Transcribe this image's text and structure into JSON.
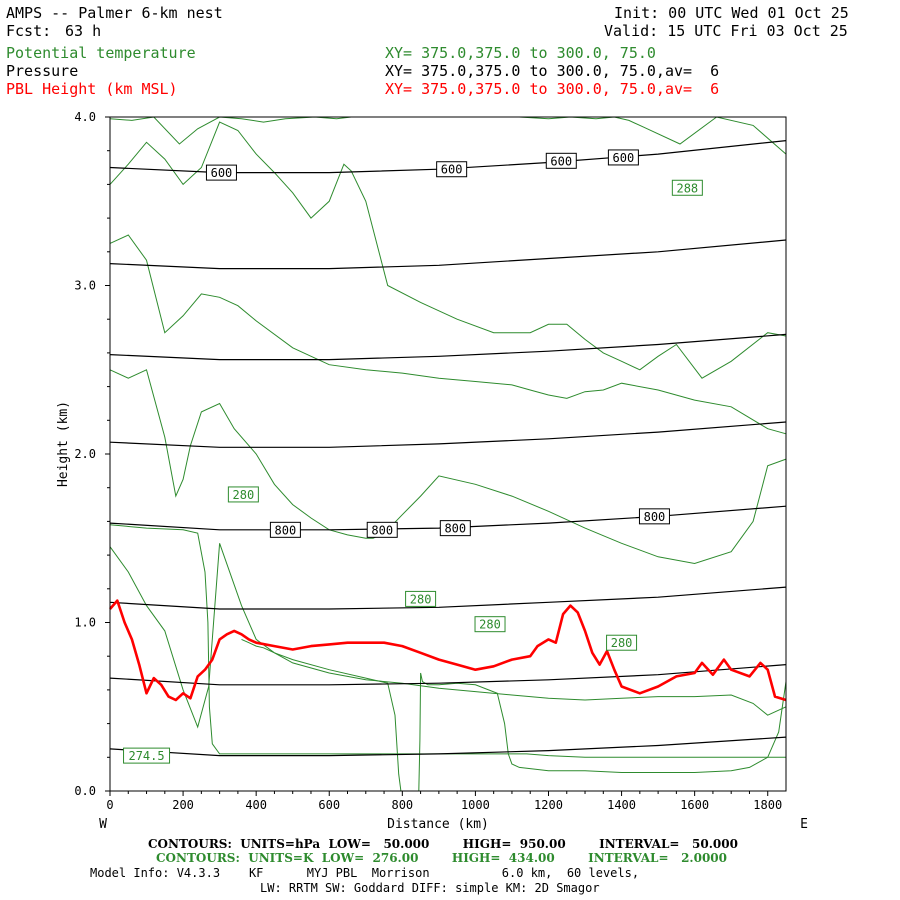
{
  "header": {
    "model": "AMPS -- Palmer 6-km nest",
    "fcst_label": "Fcst:",
    "fcst_value": "63 h",
    "init": "Init: 00 UTC Wed 01 Oct 25",
    "valid": "Valid: 15 UTC Fri 03 Oct 25",
    "field1": "Potential temperature",
    "field1_xy": "XY= 375.0,375.0 to 300.0, 75.0",
    "field2": "Pressure",
    "field2_xy": "XY= 375.0,375.0 to 300.0, 75.0,av=  6",
    "field3": "PBL Height (km MSL)",
    "field3_xy": "XY= 375.0,375.0 to 300.0, 75.0,av=  6"
  },
  "footer": {
    "pressure_contours": "CONTOURS:  UNITS=hPa  LOW=   50.000        HIGH=  950.00        INTERVAL=   50.000",
    "theta_contours": "CONTOURS:  UNITS=K  LOW=  276.00        HIGH=  434.00        INTERVAL=   2.0000",
    "model_info": "Model Info: V4.3.3    KF      MYJ PBL  Morrison          6.0 km,  60 levels,",
    "model_info2": "LW: RRTM SW: Goddard DIFF: simple KM: 2D Smagor"
  },
  "colors": {
    "theta": "#2e8b2e",
    "pressure": "#000000",
    "pbl": "#ff0000"
  },
  "chart_data": {
    "type": "line",
    "xlabel": "Distance (km)",
    "ylabel": "Height (km)",
    "x_left_label": "W",
    "x_right_label": "E",
    "xlim": [
      0,
      1850
    ],
    "ylim": [
      0,
      4
    ],
    "xticks": [
      0,
      200,
      400,
      600,
      800,
      1000,
      1200,
      1400,
      1600,
      1800
    ],
    "yticks": [
      0.0,
      1.0,
      2.0,
      3.0,
      4.0
    ],
    "ytick_labels": [
      "0.0",
      "1.0",
      "2.0",
      "3.0",
      "4.0"
    ],
    "pressure_lines": [
      {
        "level": 950,
        "x": [
          0,
          300,
          600,
          900,
          1200,
          1500,
          1850
        ],
        "y": [
          0.25,
          0.21,
          0.21,
          0.22,
          0.24,
          0.27,
          0.32
        ]
      },
      {
        "level": 900,
        "x": [
          0,
          300,
          600,
          900,
          1200,
          1500,
          1850
        ],
        "y": [
          0.67,
          0.63,
          0.63,
          0.64,
          0.66,
          0.69,
          0.75
        ]
      },
      {
        "level": 850,
        "x": [
          0,
          300,
          600,
          900,
          1200,
          1500,
          1850
        ],
        "y": [
          1.12,
          1.08,
          1.08,
          1.09,
          1.12,
          1.15,
          1.21
        ]
      },
      {
        "level": 800,
        "x": [
          0,
          300,
          600,
          900,
          1200,
          1500,
          1850
        ],
        "y": [
          1.59,
          1.55,
          1.55,
          1.56,
          1.59,
          1.63,
          1.69
        ]
      },
      {
        "level": 750,
        "x": [
          0,
          300,
          600,
          900,
          1200,
          1500,
          1850
        ],
        "y": [
          2.07,
          2.04,
          2.04,
          2.06,
          2.09,
          2.13,
          2.19
        ]
      },
      {
        "level": 700,
        "x": [
          0,
          300,
          600,
          900,
          1200,
          1500,
          1850
        ],
        "y": [
          2.59,
          2.56,
          2.56,
          2.58,
          2.61,
          2.65,
          2.71
        ]
      },
      {
        "level": 650,
        "x": [
          0,
          300,
          600,
          900,
          1200,
          1500,
          1850
        ],
        "y": [
          3.13,
          3.1,
          3.1,
          3.12,
          3.16,
          3.2,
          3.27
        ]
      },
      {
        "level": 600,
        "x": [
          0,
          300,
          600,
          900,
          1200,
          1500,
          1850
        ],
        "y": [
          3.7,
          3.67,
          3.67,
          3.69,
          3.73,
          3.78,
          3.86
        ]
      }
    ],
    "pressure_labels": [
      {
        "text": "600",
        "x": 305,
        "y": 3.67
      },
      {
        "text": "600",
        "x": 935,
        "y": 3.69
      },
      {
        "text": "600",
        "x": 1235,
        "y": 3.74
      },
      {
        "text": "600",
        "x": 1405,
        "y": 3.76
      },
      {
        "text": "800",
        "x": 480,
        "y": 1.55
      },
      {
        "text": "800",
        "x": 745,
        "y": 1.55
      },
      {
        "text": "800",
        "x": 945,
        "y": 1.56
      },
      {
        "text": "800",
        "x": 1490,
        "y": 1.63
      }
    ],
    "theta_lines": [
      {
        "x": [
          0,
          60,
          120,
          190,
          240,
          300,
          360,
          420,
          480,
          560,
          620,
          660,
          720,
          790,
          880,
          1000,
          1120,
          1200,
          1260,
          1330,
          1380,
          1420,
          1460,
          1560,
          1660,
          1760,
          1850
        ],
        "y": [
          3.99,
          3.98,
          4.0,
          3.84,
          3.93,
          4.0,
          3.99,
          3.97,
          3.99,
          4.0,
          3.99,
          4.0,
          4.0,
          4.0,
          4.0,
          4.0,
          4.0,
          3.99,
          4.0,
          3.99,
          4.0,
          3.98,
          3.94,
          3.84,
          4.0,
          3.95,
          3.78
        ]
      },
      {
        "x": [
          0,
          50,
          100,
          150,
          200,
          250,
          300,
          350,
          400,
          450,
          500,
          550,
          600,
          640,
          660,
          700,
          760,
          850,
          950,
          1050,
          1150,
          1200,
          1250,
          1300,
          1350,
          1400,
          1450,
          1500,
          1550,
          1620,
          1700,
          1800,
          1850
        ],
        "y": [
          3.6,
          3.72,
          3.85,
          3.75,
          3.6,
          3.7,
          3.97,
          3.92,
          3.78,
          3.67,
          3.55,
          3.4,
          3.5,
          3.72,
          3.68,
          3.5,
          3.0,
          2.9,
          2.8,
          2.72,
          2.72,
          2.77,
          2.77,
          2.68,
          2.6,
          2.55,
          2.5,
          2.58,
          2.65,
          2.45,
          2.55,
          2.72,
          2.7
        ]
      },
      {
        "x": [
          0,
          50,
          100,
          150,
          200,
          250,
          300,
          350,
          400,
          500,
          600,
          700,
          800,
          900,
          1000,
          1100,
          1150,
          1200,
          1250,
          1300,
          1350,
          1400,
          1500,
          1600,
          1700,
          1800,
          1850
        ],
        "y": [
          3.25,
          3.3,
          3.15,
          2.72,
          2.82,
          2.95,
          2.93,
          2.88,
          2.79,
          2.63,
          2.53,
          2.5,
          2.48,
          2.45,
          2.43,
          2.41,
          2.38,
          2.35,
          2.33,
          2.37,
          2.38,
          2.42,
          2.38,
          2.32,
          2.28,
          2.15,
          2.12
        ]
      },
      {
        "x": [
          0,
          50,
          100,
          150,
          180,
          200,
          220,
          250,
          300,
          340,
          400,
          450,
          500,
          550,
          600,
          650,
          700,
          720,
          740,
          760,
          800,
          850,
          900,
          1000,
          1100,
          1200,
          1300,
          1400,
          1500,
          1600,
          1700,
          1760,
          1800,
          1850
        ],
        "y": [
          2.5,
          2.45,
          2.5,
          2.1,
          1.75,
          1.85,
          2.05,
          2.25,
          2.3,
          2.15,
          2.0,
          1.82,
          1.7,
          1.62,
          1.55,
          1.52,
          1.5,
          1.5,
          1.52,
          1.55,
          1.64,
          1.75,
          1.87,
          1.82,
          1.75,
          1.66,
          1.56,
          1.47,
          1.39,
          1.35,
          1.42,
          1.6,
          1.93,
          1.97
        ]
      },
      {
        "x": [
          0,
          50,
          100,
          150,
          200,
          240,
          270,
          300,
          360,
          400,
          450,
          500,
          600,
          700,
          800,
          900,
          1000,
          1100,
          1200,
          1300,
          1400,
          1500,
          1600,
          1700,
          1760,
          1800,
          1850
        ],
        "y": [
          1.45,
          1.3,
          1.1,
          0.95,
          0.6,
          0.38,
          0.62,
          1.47,
          1.1,
          0.9,
          0.82,
          0.76,
          0.7,
          0.66,
          0.64,
          0.61,
          0.59,
          0.57,
          0.55,
          0.54,
          0.55,
          0.56,
          0.56,
          0.57,
          0.52,
          0.45,
          0.5
        ]
      },
      {
        "x": [
          0,
          100,
          200,
          240,
          260,
          268,
          272,
          280,
          300,
          600,
          700,
          760,
          800,
          860,
          900,
          960,
          1000,
          1060,
          1100,
          1120,
          1140,
          1200,
          1300,
          1400,
          1500,
          1600,
          1700,
          1760,
          1800,
          1850
        ],
        "y": [
          1.58,
          1.56,
          1.55,
          1.53,
          1.3,
          1.0,
          0.5,
          0.28,
          0.22,
          0.22,
          0.22,
          0.22,
          0.22,
          0.22,
          0.22,
          0.22,
          0.22,
          0.22,
          0.22,
          0.22,
          0.22,
          0.21,
          0.2,
          0.2,
          0.2,
          0.2,
          0.2,
          0.2,
          0.2,
          0.2
        ]
      },
      {
        "x": [
          360,
          380,
          400,
          420,
          450,
          500,
          600,
          700,
          760,
          780,
          790,
          796,
          800
        ],
        "y": [
          0.9,
          0.88,
          0.86,
          0.85,
          0.82,
          0.78,
          0.72,
          0.67,
          0.64,
          0.45,
          0.1,
          0.0,
          0.0
        ]
      },
      {
        "x": [
          845,
          848,
          850,
          855,
          870,
          900,
          950,
          1000,
          1060,
          1080,
          1090,
          1100,
          1120,
          1200,
          1300,
          1400,
          1500,
          1600,
          1700,
          1750,
          1800,
          1830,
          1850
        ],
        "y": [
          0.0,
          0.3,
          0.7,
          0.65,
          0.63,
          0.63,
          0.64,
          0.63,
          0.58,
          0.4,
          0.22,
          0.16,
          0.14,
          0.12,
          0.12,
          0.11,
          0.11,
          0.11,
          0.12,
          0.14,
          0.2,
          0.35,
          0.65
        ]
      }
    ],
    "theta_labels": [
      {
        "text": "288",
        "x": 1580,
        "y": 3.58
      },
      {
        "text": "280",
        "x": 365,
        "y": 1.76
      },
      {
        "text": "280",
        "x": 850,
        "y": 1.14
      },
      {
        "text": "280",
        "x": 1040,
        "y": 0.99
      },
      {
        "text": "280",
        "x": 1400,
        "y": 0.88
      },
      {
        "text": "274.5",
        "x": 100,
        "y": 0.21
      }
    ],
    "theta_annotation": {
      "text": "274.5",
      "x": 100,
      "y": 0.21
    },
    "pbl": {
      "name": "PBL Height (km MSL)",
      "x": [
        0,
        20,
        40,
        60,
        80,
        100,
        120,
        140,
        160,
        180,
        200,
        220,
        240,
        260,
        280,
        300,
        320,
        340,
        360,
        380,
        400,
        450,
        500,
        550,
        600,
        650,
        700,
        750,
        800,
        850,
        900,
        950,
        1000,
        1050,
        1100,
        1150,
        1170,
        1200,
        1220,
        1240,
        1260,
        1280,
        1300,
        1320,
        1340,
        1360,
        1380,
        1400,
        1450,
        1500,
        1550,
        1600,
        1620,
        1650,
        1680,
        1700,
        1750,
        1780,
        1800,
        1820,
        1850
      ],
      "y": [
        1.08,
        1.13,
        1.0,
        0.9,
        0.75,
        0.58,
        0.67,
        0.63,
        0.56,
        0.54,
        0.58,
        0.55,
        0.68,
        0.72,
        0.78,
        0.9,
        0.93,
        0.95,
        0.93,
        0.9,
        0.88,
        0.86,
        0.84,
        0.86,
        0.87,
        0.88,
        0.88,
        0.88,
        0.86,
        0.82,
        0.78,
        0.75,
        0.72,
        0.74,
        0.78,
        0.8,
        0.86,
        0.9,
        0.88,
        1.05,
        1.1,
        1.06,
        0.95,
        0.82,
        0.75,
        0.83,
        0.72,
        0.62,
        0.58,
        0.62,
        0.68,
        0.7,
        0.76,
        0.69,
        0.78,
        0.72,
        0.68,
        0.76,
        0.72,
        0.56,
        0.54
      ]
    }
  }
}
